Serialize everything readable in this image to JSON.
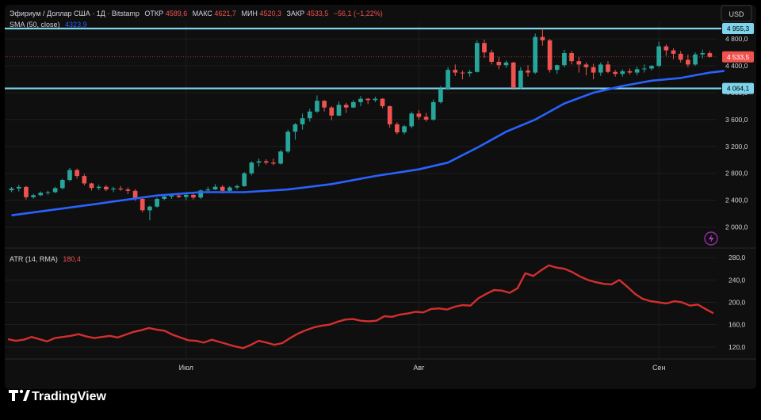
{
  "header": {
    "symbol_line": "Эфириум / Доллар США · 1Д · Bitstamp",
    "open_label": "ОТКР",
    "open_value": "4589,6",
    "high_label": "МАКС",
    "high_value": "4621,7",
    "low_label": "МИН",
    "low_value": "4520,3",
    "close_label": "ЗАКР",
    "close_value": "4533,5",
    "change_value": "−56,1 (−1,22%)",
    "sma_label": "SMA (50, close)",
    "sma_value": "4323,9",
    "atr_label": "ATR (14, RMA)",
    "atr_value": "180,4"
  },
  "currency_button": "USD",
  "logo_text": "TradingView",
  "lightning_icon": "lightning-icon",
  "colors": {
    "background": "#0f0f0f",
    "frame": "#000000",
    "up": "#26a69a",
    "down": "#ef5350",
    "sma": "#2962ff",
    "atr": "#d32f2f",
    "level": "#7fd3ec",
    "text": "#d1d4dc",
    "grid": "#1e1e1e"
  },
  "chart_data": [
    {
      "type": "candlestick",
      "title": "Эфириум / Доллар США · 1Д · Bitstamp",
      "y_ticks": [
        "4 800,0",
        "4 400,0",
        "4 000,0",
        "3 600,0",
        "3 200,0",
        "2 800,0",
        "2 400,0",
        "2 000,0"
      ],
      "y_tick_values": [
        4800,
        4400,
        4000,
        3600,
        3200,
        2800,
        2400,
        2000
      ],
      "ylim": [
        1700,
        5050
      ],
      "x_labels": [
        "Июл",
        "Авг",
        "Сен"
      ],
      "x_label_index": [
        24,
        56,
        89
      ],
      "horizontal_levels": [
        {
          "value": 4955.3,
          "label": "4 955,3"
        },
        {
          "value": 4064.1,
          "label": "4 064,1"
        }
      ],
      "last_price": {
        "value": 4533.5,
        "label": "4 533,5"
      },
      "candles": [
        [
          2549,
          2597,
          2520,
          2575
        ],
        [
          2575,
          2630,
          2530,
          2598
        ],
        [
          2598,
          2612,
          2410,
          2445
        ],
        [
          2445,
          2495,
          2425,
          2475
        ],
        [
          2475,
          2530,
          2460,
          2511
        ],
        [
          2511,
          2540,
          2480,
          2520
        ],
        [
          2520,
          2600,
          2505,
          2580
        ],
        [
          2580,
          2720,
          2560,
          2702
        ],
        [
          2702,
          2880,
          2680,
          2850
        ],
        [
          2850,
          2870,
          2720,
          2760
        ],
        [
          2760,
          2790,
          2620,
          2650
        ],
        [
          2650,
          2660,
          2545,
          2582
        ],
        [
          2582,
          2630,
          2550,
          2600
        ],
        [
          2600,
          2625,
          2535,
          2560
        ],
        [
          2560,
          2600,
          2520,
          2574
        ],
        [
          2574,
          2610,
          2540,
          2560
        ],
        [
          2560,
          2590,
          2490,
          2540
        ],
        [
          2540,
          2565,
          2390,
          2420
        ],
        [
          2420,
          2430,
          2220,
          2250
        ],
        [
          2250,
          2320,
          2100,
          2305
        ],
        [
          2305,
          2440,
          2290,
          2420
        ],
        [
          2420,
          2480,
          2400,
          2455
        ],
        [
          2455,
          2500,
          2420,
          2470
        ],
        [
          2470,
          2505,
          2430,
          2448
        ],
        [
          2448,
          2520,
          2400,
          2480
        ],
        [
          2480,
          2500,
          2410,
          2440
        ],
        [
          2440,
          2560,
          2420,
          2545
        ],
        [
          2545,
          2600,
          2500,
          2560
        ],
        [
          2560,
          2640,
          2550,
          2600
        ],
        [
          2600,
          2625,
          2500,
          2540
        ],
        [
          2540,
          2610,
          2530,
          2590
        ],
        [
          2590,
          2630,
          2560,
          2610
        ],
        [
          2610,
          2820,
          2600,
          2800
        ],
        [
          2800,
          2980,
          2770,
          2960
        ],
        [
          2960,
          3020,
          2900,
          2980
        ],
        [
          2980,
          3010,
          2930,
          2960
        ],
        [
          2960,
          3020,
          2920,
          2945
        ],
        [
          2945,
          3150,
          2930,
          3125
        ],
        [
          3125,
          3450,
          3100,
          3420
        ],
        [
          3420,
          3550,
          3300,
          3530
        ],
        [
          3530,
          3690,
          3450,
          3620
        ],
        [
          3620,
          3760,
          3570,
          3720
        ],
        [
          3720,
          3960,
          3700,
          3880
        ],
        [
          3880,
          3890,
          3720,
          3780
        ],
        [
          3780,
          3800,
          3590,
          3660
        ],
        [
          3660,
          3870,
          3650,
          3820
        ],
        [
          3820,
          3850,
          3700,
          3780
        ],
        [
          3780,
          3890,
          3770,
          3860
        ],
        [
          3860,
          3950,
          3800,
          3910
        ],
        [
          3910,
          3920,
          3830,
          3890
        ],
        [
          3890,
          3940,
          3860,
          3910
        ],
        [
          3910,
          3920,
          3770,
          3800
        ],
        [
          3800,
          3810,
          3480,
          3530
        ],
        [
          3530,
          3560,
          3380,
          3410
        ],
        [
          3410,
          3520,
          3380,
          3500
        ],
        [
          3500,
          3720,
          3470,
          3690
        ],
        [
          3690,
          3740,
          3600,
          3640
        ],
        [
          3640,
          3700,
          3570,
          3600
        ],
        [
          3600,
          3900,
          3580,
          3860
        ],
        [
          3860,
          4100,
          3840,
          4060
        ],
        [
          4060,
          4380,
          4040,
          4340
        ],
        [
          4340,
          4420,
          4250,
          4300
        ],
        [
          4300,
          4330,
          4200,
          4290
        ],
        [
          4290,
          4340,
          4240,
          4310
        ],
        [
          4310,
          4780,
          4300,
          4740
        ],
        [
          4740,
          4790,
          4520,
          4600
        ],
        [
          4600,
          4640,
          4420,
          4460
        ],
        [
          4460,
          4530,
          4350,
          4410
        ],
        [
          4410,
          4480,
          4370,
          4450
        ],
        [
          4450,
          4460,
          4040,
          4080
        ],
        [
          4080,
          4380,
          4050,
          4330
        ],
        [
          4330,
          4410,
          4240,
          4300
        ],
        [
          4300,
          4880,
          4280,
          4830
        ],
        [
          4830,
          4955,
          4700,
          4780
        ],
        [
          4780,
          4800,
          4300,
          4340
        ],
        [
          4340,
          4420,
          4280,
          4410
        ],
        [
          4410,
          4640,
          4380,
          4590
        ],
        [
          4590,
          4620,
          4420,
          4470
        ],
        [
          4470,
          4530,
          4300,
          4420
        ],
        [
          4420,
          4450,
          4260,
          4380
        ],
        [
          4380,
          4430,
          4200,
          4300
        ],
        [
          4300,
          4450,
          4250,
          4420
        ],
        [
          4420,
          4470,
          4290,
          4310
        ],
        [
          4310,
          4340,
          4240,
          4280
        ],
        [
          4280,
          4350,
          4240,
          4320
        ],
        [
          4320,
          4360,
          4270,
          4300
        ],
        [
          4300,
          4390,
          4260,
          4350
        ],
        [
          4350,
          4420,
          4300,
          4360
        ],
        [
          4360,
          4410,
          4330,
          4400
        ],
        [
          4400,
          4760,
          4380,
          4690
        ],
        [
          4690,
          4720,
          4550,
          4630
        ],
        [
          4630,
          4660,
          4500,
          4580
        ],
        [
          4580,
          4620,
          4450,
          4490
        ],
        [
          4490,
          4570,
          4380,
          4420
        ],
        [
          4420,
          4600,
          4400,
          4570
        ],
        [
          4570,
          4640,
          4510,
          4589.6
        ],
        [
          4589.6,
          4621.7,
          4520.3,
          4533.5
        ]
      ],
      "sma": [
        {
          "name": "SMA (50, close)",
          "points": [
            [
              0,
              2175
            ],
            [
              10,
              2320
            ],
            [
              20,
              2470
            ],
            [
              26,
              2520
            ],
            [
              32,
              2520
            ],
            [
              38,
              2560
            ],
            [
              44,
              2640
            ],
            [
              50,
              2760
            ],
            [
              56,
              2860
            ],
            [
              60,
              2960
            ],
            [
              64,
              3180
            ],
            [
              68,
              3420
            ],
            [
              72,
              3600
            ],
            [
              76,
              3840
            ],
            [
              80,
              4000
            ],
            [
              84,
              4100
            ],
            [
              88,
              4180
            ],
            [
              92,
              4220
            ],
            [
              96,
              4300
            ],
            [
              98,
              4323.9
            ]
          ]
        }
      ]
    },
    {
      "type": "line",
      "title": "ATR (14, RMA)",
      "y_ticks": [
        "280,0",
        "240,0",
        "200,0",
        "160,0",
        "120,0"
      ],
      "y_tick_values": [
        280,
        240,
        200,
        160,
        120
      ],
      "ylim": [
        100,
        290
      ],
      "series": [
        {
          "name": "ATR (14, RMA)",
          "values": [
            134,
            131,
            133,
            138,
            134,
            130,
            136,
            138,
            140,
            143,
            139,
            136,
            138,
            140,
            137,
            142,
            147,
            150,
            154,
            151,
            149,
            142,
            137,
            132,
            131,
            128,
            133,
            129,
            125,
            121,
            118,
            124,
            131,
            128,
            124,
            127,
            136,
            144,
            150,
            155,
            158,
            160,
            165,
            169,
            170,
            167,
            166,
            167,
            175,
            174,
            178,
            180,
            183,
            182,
            188,
            189,
            187,
            192,
            195,
            194,
            207,
            215,
            222,
            221,
            217,
            225,
            252,
            247,
            257,
            266,
            262,
            260,
            254,
            246,
            240,
            236,
            233,
            232,
            240,
            228,
            215,
            206,
            202,
            200,
            198,
            202,
            200,
            194,
            196,
            188,
            180.4
          ]
        }
      ]
    }
  ]
}
